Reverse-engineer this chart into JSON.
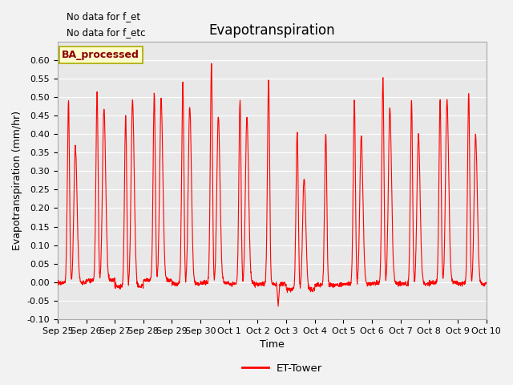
{
  "title": "Evapotranspiration",
  "ylabel": "Evapotranspiration (mm/hr)",
  "xlabel": "Time",
  "ylim": [
    -0.1,
    0.65
  ],
  "yticks": [
    -0.1,
    -0.05,
    0.0,
    0.05,
    0.1,
    0.15,
    0.2,
    0.25,
    0.3,
    0.35,
    0.4,
    0.45,
    0.5,
    0.55,
    0.6
  ],
  "line_color": "#FF0000",
  "line_width": 0.8,
  "background_color": "#E8E8E8",
  "annotations": [
    "No data for f_et",
    "No data for f_etc"
  ],
  "legend_label": "ET-Tower",
  "box_facecolor": "#FFFFCC",
  "box_edgecolor": "#AAAA00",
  "subtitle_box": "BA_processed",
  "x_tick_labels": [
    "Sep 25",
    "Sep 26",
    "Sep 27",
    "Sep 28",
    "Sep 29",
    "Sep 30",
    "Oct 1",
    "Oct 2",
    "Oct 3",
    "Oct 4",
    "Oct 5",
    "Oct 6",
    "Oct 7",
    "Oct 8",
    "Oct 9",
    "Oct 10"
  ],
  "num_days": 15,
  "pts_per_day": 144,
  "title_fontsize": 12,
  "axis_fontsize": 9,
  "tick_fontsize": 8,
  "day_peaks": [
    0.49,
    0.51,
    0.465,
    0.505,
    0.545,
    0.59,
    0.5,
    0.555,
    0.43,
    0.41,
    0.495,
    0.555,
    0.495,
    0.495,
    0.515
  ],
  "second_peaks": [
    0.37,
    0.465,
    0.5,
    0.49,
    0.48,
    0.45,
    0.45,
    0.0,
    0.3,
    0.0,
    0.4,
    0.47,
    0.4,
    0.495,
    0.4
  ],
  "night_baseline": [
    -0.002,
    0.005,
    -0.012,
    0.005,
    -0.005,
    -0.002,
    -0.005,
    -0.005,
    -0.02,
    -0.008,
    -0.005,
    -0.003,
    -0.005,
    -0.002,
    -0.005
  ],
  "deep_neg": [
    false,
    false,
    false,
    false,
    false,
    false,
    false,
    true,
    false,
    false,
    false,
    false,
    false,
    false,
    false
  ],
  "deep_neg_val": -0.065
}
